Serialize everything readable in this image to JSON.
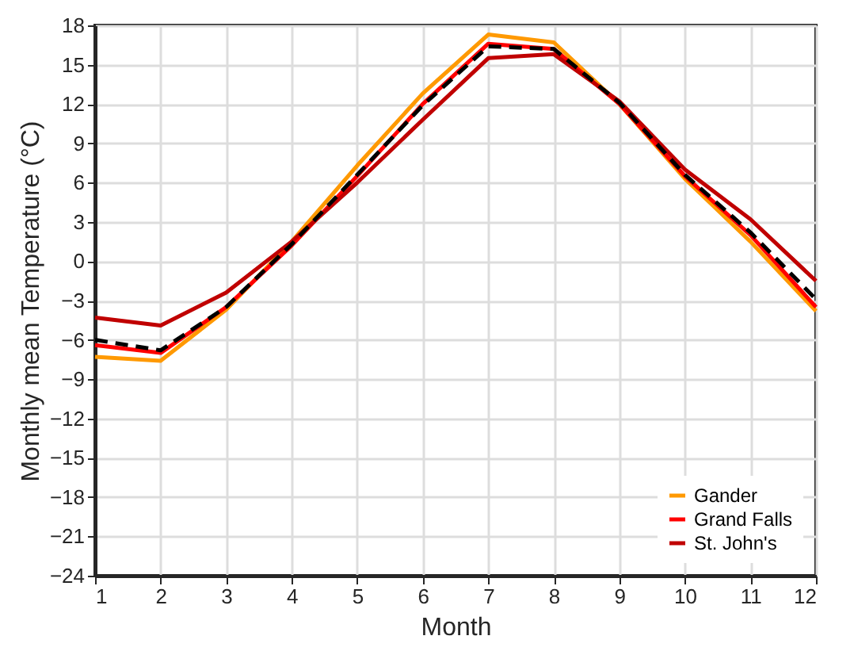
{
  "chart_data": {
    "type": "line",
    "xlabel": "Month",
    "ylabel": "Monthly mean Temperature (°C)",
    "x": [
      1,
      2,
      3,
      4,
      5,
      6,
      7,
      8,
      9,
      10,
      11,
      12
    ],
    "xlim": [
      1,
      12
    ],
    "xticks": [
      1,
      2,
      3,
      4,
      5,
      6,
      7,
      8,
      9,
      10,
      11,
      12
    ],
    "ylim": [
      -24,
      18
    ],
    "yticks": [
      -24,
      -21,
      -18,
      -15,
      -12,
      -9,
      -6,
      -3,
      0,
      3,
      6,
      9,
      12,
      15,
      18
    ],
    "grid": true,
    "legend": "bottom right",
    "marker": "none",
    "series": [
      {
        "name": "Gander",
        "color": "#ff9900",
        "values": [
          -7.3,
          -7.6,
          -3.7,
          1.5,
          7.3,
          12.8,
          17.3,
          16.7,
          12.0,
          6.3,
          1.5,
          -3.8
        ]
      },
      {
        "name": "Grand Falls",
        "color": "#ff0000",
        "values": [
          -6.4,
          -7.0,
          -3.5,
          1.2,
          6.5,
          12.0,
          16.6,
          16.2,
          12.0,
          6.5,
          2.0,
          -3.5
        ]
      },
      {
        "name": "St. John's",
        "color": "#c00000",
        "values": [
          -4.3,
          -4.9,
          -2.4,
          1.5,
          6.0,
          10.8,
          15.5,
          15.8,
          12.2,
          7.0,
          3.2,
          -1.5
        ]
      },
      {
        "color": "#000000",
        "line_style": "dashed",
        "values": [
          -6.0,
          -6.8,
          -3.5,
          1.3,
          6.6,
          11.9,
          16.4,
          16.2,
          12.1,
          6.6,
          2.2,
          -2.9
        ]
      }
    ]
  }
}
